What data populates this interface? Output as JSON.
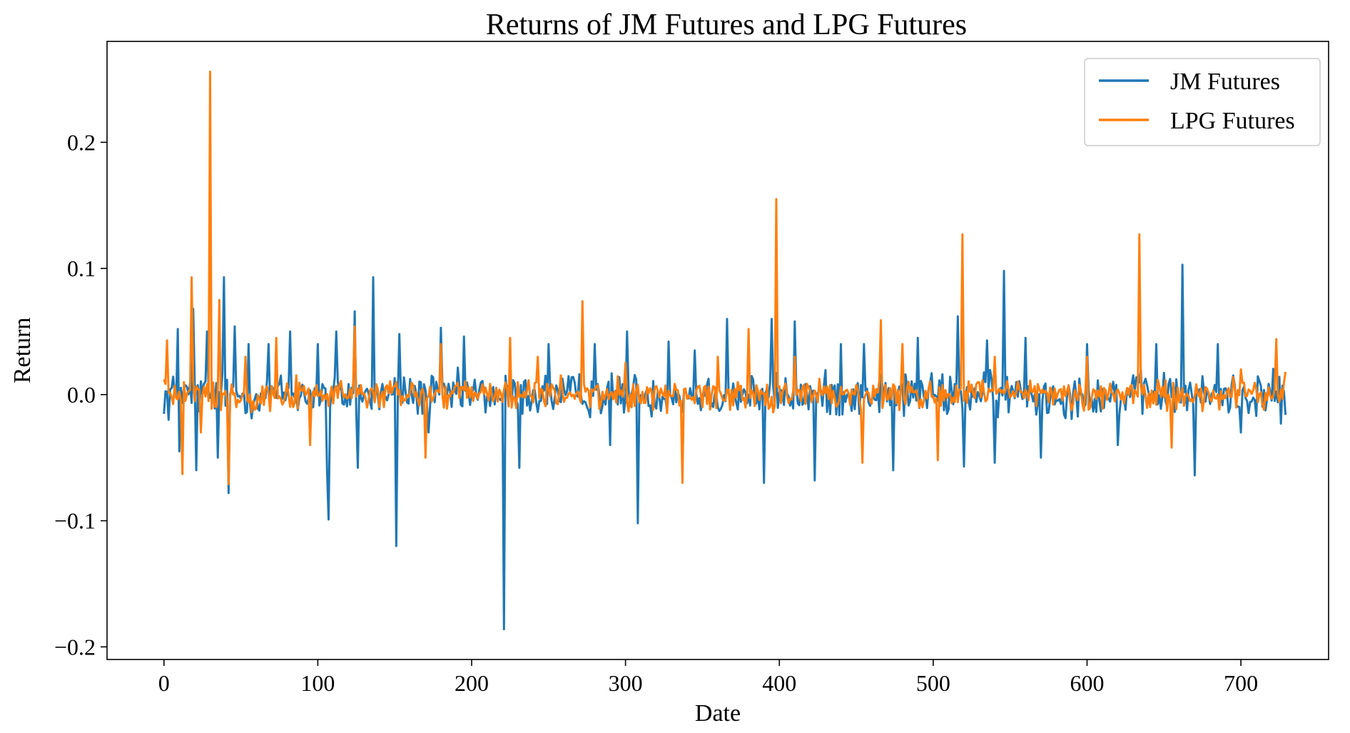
{
  "chart_data": {
    "type": "line",
    "title": "Returns of JM Futures and LPG Futures",
    "xlabel": "Date",
    "ylabel": "Return",
    "xlim": [
      -37,
      757
    ],
    "ylim": [
      -0.21,
      0.28
    ],
    "x_ticks": [
      0,
      100,
      200,
      300,
      400,
      500,
      600,
      700
    ],
    "x_tick_labels": [
      "0",
      "100",
      "200",
      "300",
      "400",
      "500",
      "600",
      "700"
    ],
    "y_ticks": [
      -0.2,
      -0.1,
      0.0,
      0.1,
      0.2
    ],
    "y_tick_labels": [
      "−0.2",
      "−0.1",
      "0.0",
      "0.1",
      "0.2"
    ],
    "grid": false,
    "legend_position": "top-right",
    "n_points": 730,
    "series": [
      {
        "name": "JM Futures",
        "color": "#1f77b4",
        "noise_amplitude": 0.025,
        "extremes": [
          [
            3,
            -0.02
          ],
          [
            9,
            0.052
          ],
          [
            10,
            -0.045
          ],
          [
            19,
            0.068
          ],
          [
            21,
            -0.06
          ],
          [
            28,
            0.05
          ],
          [
            35,
            -0.05
          ],
          [
            39,
            0.093
          ],
          [
            42,
            -0.078
          ],
          [
            46,
            0.054
          ],
          [
            55,
            0.04
          ],
          [
            68,
            0.04
          ],
          [
            82,
            0.05
          ],
          [
            100,
            0.04
          ],
          [
            106,
            -0.06
          ],
          [
            107,
            -0.099
          ],
          [
            112,
            0.05
          ],
          [
            124,
            0.066
          ],
          [
            126,
            -0.058
          ],
          [
            136,
            0.093
          ],
          [
            151,
            -0.12
          ],
          [
            153,
            0.048
          ],
          [
            172,
            -0.03
          ],
          [
            180,
            0.053
          ],
          [
            195,
            0.046
          ],
          [
            221,
            -0.186
          ],
          [
            231,
            -0.058
          ],
          [
            250,
            0.04
          ],
          [
            280,
            0.04
          ],
          [
            290,
            -0.04
          ],
          [
            301,
            0.05
          ],
          [
            308,
            -0.102
          ],
          [
            328,
            0.042
          ],
          [
            345,
            0.035
          ],
          [
            366,
            0.06
          ],
          [
            390,
            -0.07
          ],
          [
            395,
            0.06
          ],
          [
            410,
            0.058
          ],
          [
            423,
            -0.068
          ],
          [
            440,
            0.04
          ],
          [
            455,
            0.04
          ],
          [
            474,
            -0.06
          ],
          [
            490,
            0.045
          ],
          [
            516,
            0.062
          ],
          [
            520,
            -0.057
          ],
          [
            535,
            0.043
          ],
          [
            540,
            -0.054
          ],
          [
            546,
            0.098
          ],
          [
            560,
            0.045
          ],
          [
            570,
            -0.05
          ],
          [
            600,
            0.04
          ],
          [
            620,
            -0.04
          ],
          [
            645,
            0.04
          ],
          [
            662,
            0.103
          ],
          [
            670,
            -0.064
          ],
          [
            685,
            0.04
          ],
          [
            700,
            -0.03
          ],
          [
            726,
            -0.023
          ]
        ]
      },
      {
        "name": "LPG Futures",
        "color": "#ff7f0e",
        "noise_amplitude": 0.018,
        "extremes": [
          [
            0,
            0.012
          ],
          [
            2,
            0.043
          ],
          [
            12,
            -0.063
          ],
          [
            18,
            0.093
          ],
          [
            24,
            -0.03
          ],
          [
            30,
            0.256
          ],
          [
            36,
            0.075
          ],
          [
            42,
            -0.071
          ],
          [
            53,
            0.03
          ],
          [
            73,
            0.045
          ],
          [
            95,
            -0.04
          ],
          [
            124,
            0.054
          ],
          [
            170,
            -0.05
          ],
          [
            180,
            0.04
          ],
          [
            225,
            0.045
          ],
          [
            243,
            0.03
          ],
          [
            272,
            0.074
          ],
          [
            300,
            0.025
          ],
          [
            337,
            -0.07
          ],
          [
            360,
            0.03
          ],
          [
            380,
            0.052
          ],
          [
            398,
            0.155
          ],
          [
            410,
            0.03
          ],
          [
            454,
            -0.054
          ],
          [
            466,
            0.059
          ],
          [
            480,
            0.04
          ],
          [
            503,
            -0.052
          ],
          [
            519,
            0.127
          ],
          [
            540,
            0.03
          ],
          [
            600,
            0.03
          ],
          [
            634,
            0.127
          ],
          [
            655,
            -0.042
          ],
          [
            700,
            0.02
          ],
          [
            723,
            0.044
          ],
          [
            729,
            0.018
          ]
        ]
      }
    ]
  }
}
